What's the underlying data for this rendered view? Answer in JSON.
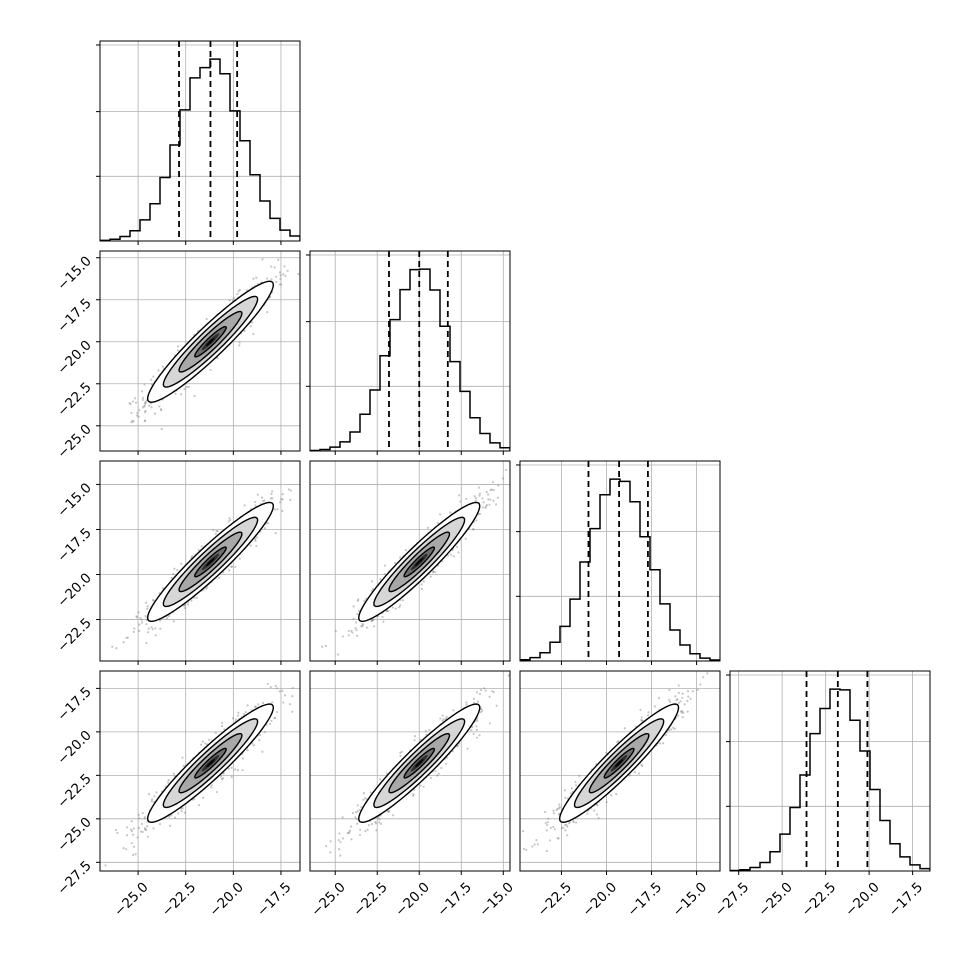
{
  "figure": {
    "background": "#ffffff",
    "gridline_color": "#b0b0b0",
    "frame_color": "#000000",
    "histogram_color": "#000000",
    "quantile_line_style": "dashed",
    "scatter_color": "#808080",
    "density_levels": [
      "#ffffff",
      "#d6d6d6",
      "#a8a8a8",
      "#6e6e6e",
      "#2e2e2e",
      "#000000"
    ]
  },
  "chart_data": {
    "type": "corner",
    "grid": "on",
    "n_params": 4,
    "params": [
      {
        "mean": -21.2,
        "std": 1.65,
        "range": [
          -27.0,
          -16.5
        ],
        "ticks": [
          -25.0,
          -22.5,
          -20.0,
          -17.5
        ],
        "tick_labels": [
          "−25.0",
          "−22.5",
          "−20.0",
          "−17.5"
        ],
        "quantiles": [
          -22.85,
          -21.2,
          -19.8
        ]
      },
      {
        "mean": -20.0,
        "std": 1.8,
        "range": [
          -26.5,
          -14.6
        ],
        "ticks": [
          -25.0,
          -22.5,
          -20.0,
          -17.5,
          -15.0
        ],
        "tick_labels": [
          "−25.0",
          "−22.5",
          "−20.0",
          "−17.5",
          "−15.0"
        ],
        "quantiles": [
          -21.8,
          -20.0,
          -18.3
        ]
      },
      {
        "mean": -19.3,
        "std": 1.65,
        "range": [
          -24.8,
          -13.7
        ],
        "ticks": [
          -22.5,
          -20.0,
          -17.5,
          -15.0
        ],
        "tick_labels": [
          "−22.5",
          "−20.0",
          "−17.5",
          "−15.0"
        ],
        "quantiles": [
          -21.0,
          -19.3,
          -17.7
        ]
      },
      {
        "mean": -21.8,
        "std": 1.7,
        "range": [
          -28.0,
          -16.5
        ],
        "ticks": [
          -27.5,
          -25.0,
          -22.5,
          -20.0,
          -17.5
        ],
        "tick_labels": [
          "−27.5",
          "−25.0",
          "−22.5",
          "−20.0",
          "−17.5"
        ],
        "quantiles": [
          -23.6,
          -21.8,
          -20.1
        ]
      }
    ],
    "correlation": 0.94,
    "histogram_bins": 20,
    "contour_levels_sigma": [
      0.5,
      1.0,
      1.5,
      2.0
    ],
    "scatter_samples": 900
  }
}
